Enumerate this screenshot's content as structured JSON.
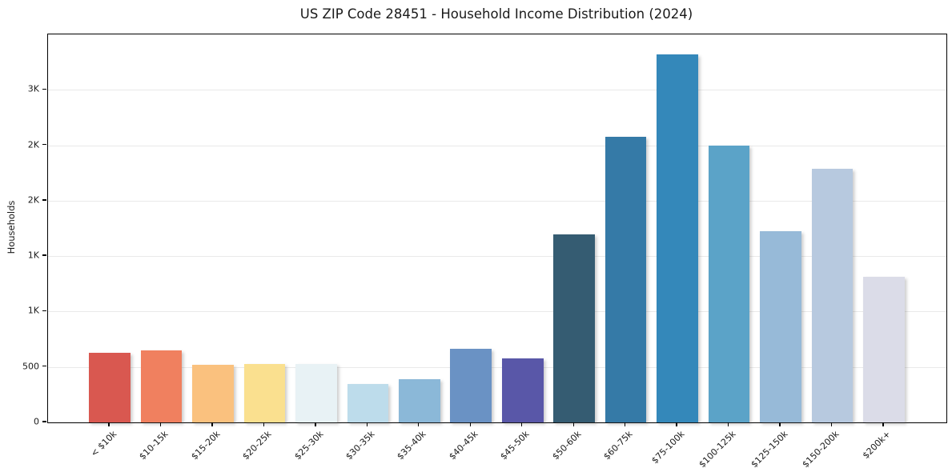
{
  "chart_data": {
    "type": "bar",
    "title": "US ZIP Code 28451 - Household Income Distribution (2024)",
    "xlabel": "",
    "ylabel": "Households",
    "categories": [
      "< $10k",
      "$10-15k",
      "$15-20k",
      "$20-25k",
      "$25-30k",
      "$30-35k",
      "$35-40k",
      "$40-45k",
      "$45-50k",
      "$50-60k",
      "$60-75k",
      "$75-100k",
      "$100-125k",
      "$125-150k",
      "$150-200k",
      "$200k+"
    ],
    "values": [
      630,
      650,
      520,
      530,
      525,
      345,
      390,
      665,
      575,
      1695,
      2575,
      3320,
      2500,
      1725,
      2290,
      1310
    ],
    "bar_colors": [
      "#d95850",
      "#f0805f",
      "#fac17e",
      "#fae08f",
      "#e8f2f5",
      "#bddceb",
      "#8bb8d8",
      "#6a92c4",
      "#5957a8",
      "#355c72",
      "#357aa7",
      "#3488ba",
      "#5ba3c8",
      "#97bad8",
      "#b7c9df",
      "#dbdce8"
    ],
    "ylim": [
      0,
      3500
    ],
    "yticks": [
      {
        "value": 0,
        "label": "0"
      },
      {
        "value": 500,
        "label": "500"
      },
      {
        "value": 1000,
        "label": "1K"
      },
      {
        "value": 1500,
        "label": "1K"
      },
      {
        "value": 2000,
        "label": "2K"
      },
      {
        "value": 2500,
        "label": "2K"
      },
      {
        "value": 3000,
        "label": "3K"
      }
    ],
    "grid": "horizontal",
    "legend": "none",
    "frame_color": "#000000",
    "gridline_color": "#e9e9e9",
    "background_color": "#ffffff"
  }
}
